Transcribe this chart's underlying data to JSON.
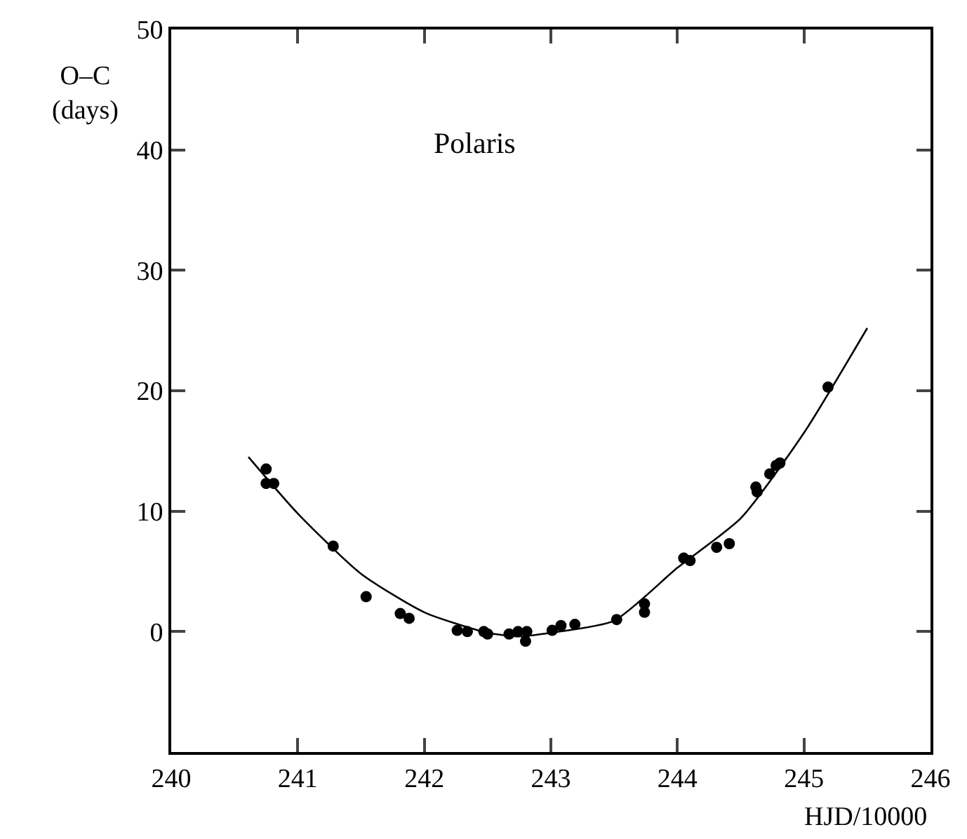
{
  "chart_data": {
    "type": "scatter",
    "title": "Polaris",
    "xlabel": "HJD/10000",
    "ylabel": "O–C (days)",
    "xlim": [
      240,
      246
    ],
    "xticks": [
      240,
      241,
      242,
      243,
      244,
      245,
      246
    ],
    "ylim": [
      -10,
      50
    ],
    "yticks": [
      0,
      10,
      20,
      30,
      40,
      50
    ],
    "grid": false,
    "marker": "circle",
    "series": [
      {
        "color": "#000000",
        "x": [
          240.75,
          240.75,
          240.81,
          241.28,
          241.54,
          241.81,
          241.88,
          242.26,
          242.34,
          242.47,
          242.5,
          242.67,
          242.74,
          242.81,
          242.8,
          243.01,
          243.08,
          243.19,
          243.52,
          243.74,
          243.74,
          244.05,
          244.1,
          244.31,
          244.41,
          244.62,
          244.63,
          244.73,
          244.78,
          244.81,
          245.19
        ],
        "values": [
          13.5,
          12.3,
          12.3,
          7.1,
          2.9,
          1.5,
          1.1,
          0.1,
          0,
          0,
          -0.2,
          -0.2,
          0,
          0,
          -0.8,
          0.1,
          0.5,
          0.6,
          1.0,
          2.3,
          1.6,
          6.1,
          5.9,
          7.0,
          7.3,
          12.0,
          11.6,
          13.1,
          13.8,
          14.0,
          20.3
        ]
      },
      {
        "type": "line",
        "color": "#000000",
        "marker": "none",
        "x": [
          240.61,
          241.0,
          241.5,
          242.0,
          242.5,
          242.75,
          243.0,
          243.5,
          244.0,
          244.5,
          245.0,
          245.5
        ],
        "values": [
          14.5,
          9.8,
          4.8,
          1.6,
          -0.1,
          -0.4,
          -0.1,
          0.9,
          5.3,
          9.4,
          16.5,
          25.2
        ]
      }
    ]
  }
}
